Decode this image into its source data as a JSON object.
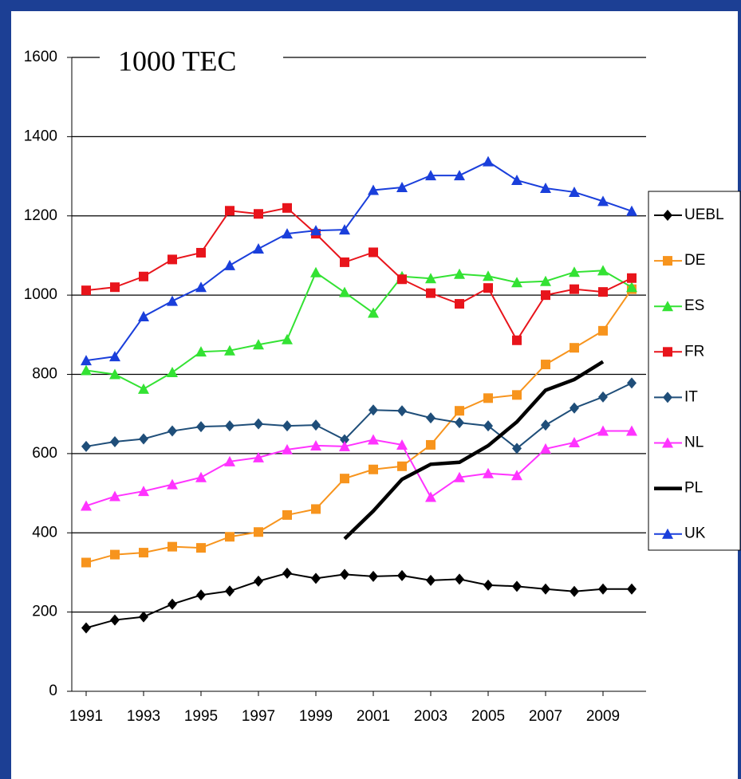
{
  "chart_data": {
    "type": "line",
    "title": "1000 TEC",
    "x": [
      1991,
      1992,
      1993,
      1994,
      1995,
      1996,
      1997,
      1998,
      1999,
      2000,
      2001,
      2002,
      2003,
      2004,
      2005,
      2006,
      2007,
      2008,
      2009,
      2010
    ],
    "xlim": [
      1990.5,
      2010.5
    ],
    "xticks": [
      1991,
      1993,
      1995,
      1997,
      1999,
      2001,
      2003,
      2005,
      2007,
      2009
    ],
    "ylim": [
      0,
      1600
    ],
    "yticks": [
      0,
      200,
      400,
      600,
      800,
      1000,
      1200,
      1400,
      1600
    ],
    "grid": true,
    "legend": "right",
    "series": [
      {
        "name": "UEBL",
        "color": "#000000",
        "marker": "diamond",
        "values": [
          160,
          180,
          188,
          220,
          243,
          253,
          278,
          298,
          285,
          295,
          290,
          292,
          280,
          283,
          268,
          265,
          258,
          252,
          258,
          258
        ]
      },
      {
        "name": "DE",
        "color": "#f7941d",
        "marker": "square",
        "values": [
          325,
          345,
          350,
          365,
          362,
          390,
          402,
          445,
          460,
          537,
          560,
          568,
          622,
          708,
          740,
          748,
          825,
          867,
          910,
          1015
        ]
      },
      {
        "name": "ES",
        "color": "#33e233",
        "marker": "triangle",
        "values": [
          810,
          800,
          763,
          805,
          857,
          860,
          875,
          888,
          1057,
          1007,
          955,
          1047,
          1042,
          1053,
          1048,
          1032,
          1035,
          1058,
          1062,
          1020
        ]
      },
      {
        "name": "FR",
        "color": "#e8141b",
        "marker": "square",
        "values": [
          1012,
          1020,
          1047,
          1090,
          1107,
          1213,
          1205,
          1220,
          1155,
          1083,
          1108,
          1040,
          1005,
          978,
          1018,
          886,
          1000,
          1015,
          1008,
          1043
        ]
      },
      {
        "name": "IT",
        "color": "#1f4e79",
        "marker": "diamond",
        "values": [
          618,
          630,
          637,
          657,
          668,
          670,
          675,
          670,
          672,
          635,
          710,
          708,
          690,
          678,
          670,
          613,
          672,
          715,
          743,
          778
        ]
      },
      {
        "name": "NL",
        "color": "#ff33ff",
        "marker": "triangle",
        "values": [
          468,
          492,
          505,
          522,
          540,
          580,
          590,
          610,
          620,
          618,
          635,
          622,
          490,
          540,
          550,
          545,
          612,
          628,
          657,
          657
        ]
      },
      {
        "name": "PL",
        "color": "#000000",
        "marker": "none",
        "values": [
          null,
          null,
          null,
          null,
          null,
          null,
          null,
          null,
          null,
          385,
          455,
          535,
          573,
          578,
          620,
          680,
          760,
          787,
          832,
          null
        ]
      },
      {
        "name": "UK",
        "color": "#1a3fdb",
        "marker": "triangle",
        "values": [
          835,
          845,
          946,
          985,
          1020,
          1075,
          1117,
          1155,
          1163,
          1165,
          1265,
          1272,
          1302,
          1302,
          1337,
          1290,
          1270,
          1260,
          1237,
          1212
        ]
      }
    ]
  }
}
